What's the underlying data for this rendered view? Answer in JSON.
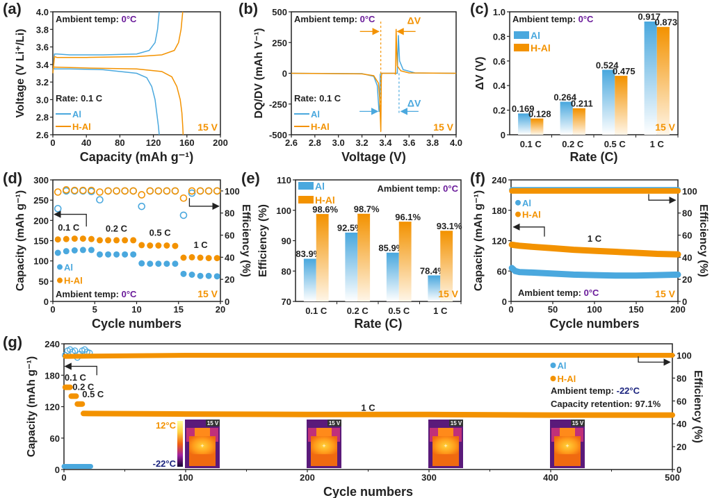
{
  "colors": {
    "al": "#4aa8de",
    "hal": "#f39200",
    "purple": "#6a1b9a",
    "navy": "#1a237e",
    "axis": "#222222"
  },
  "chart_data": [
    {
      "id": "a",
      "panel_label": "(a)",
      "type": "line",
      "xlabel": "Capacity (mAh g⁻¹)",
      "ylabel": "Voltage (V Li⁺/Li)",
      "xlim": [
        0,
        200
      ],
      "ylim": [
        2.6,
        4.0
      ],
      "xticks": [
        0,
        40,
        80,
        120,
        160,
        200
      ],
      "yticks": [
        2.6,
        2.8,
        3.0,
        3.2,
        3.4,
        3.6,
        3.8,
        4.0
      ],
      "annotations": {
        "ambient_prefix": "Ambient temp: ",
        "ambient_value": "0°C",
        "rate": "Rate: 0.1 C",
        "voltage": "15 V"
      },
      "legend": [
        "Al",
        "H-Al"
      ],
      "legend_position": "bottom-left",
      "series": [
        {
          "name": "Al charge",
          "legend": "Al",
          "x": [
            0,
            2,
            5,
            20,
            60,
            100,
            115,
            122,
            125,
            126,
            127
          ],
          "y": [
            3.3,
            3.52,
            3.52,
            3.51,
            3.51,
            3.52,
            3.56,
            3.65,
            3.8,
            3.9,
            4.0
          ]
        },
        {
          "name": "Al discharge",
          "legend": "Al",
          "x": [
            0,
            2,
            20,
            60,
            100,
            112,
            118,
            122,
            124,
            126,
            127
          ],
          "y": [
            3.36,
            3.35,
            3.35,
            3.34,
            3.3,
            3.25,
            3.15,
            3.0,
            2.85,
            2.7,
            2.6
          ]
        },
        {
          "name": "H-Al charge",
          "legend": "H-Al",
          "x": [
            0,
            2,
            5,
            40,
            100,
            130,
            145,
            150,
            153,
            154,
            155
          ],
          "y": [
            3.3,
            3.49,
            3.48,
            3.48,
            3.49,
            3.51,
            3.56,
            3.65,
            3.8,
            3.9,
            4.0
          ]
        },
        {
          "name": "H-Al discharge",
          "legend": "H-Al",
          "x": [
            0,
            2,
            40,
            100,
            130,
            142,
            148,
            152,
            154,
            155,
            155.5
          ],
          "y": [
            3.37,
            3.37,
            3.36,
            3.35,
            3.32,
            3.26,
            3.15,
            3.0,
            2.85,
            2.7,
            2.6
          ]
        }
      ]
    },
    {
      "id": "b",
      "panel_label": "(b)",
      "type": "line",
      "xlabel": "Voltage (V)",
      "ylabel": "DQ/DV (mAh V⁻¹)",
      "xlim": [
        2.6,
        4.0
      ],
      "ylim": [
        -500,
        500
      ],
      "xticks": [
        2.6,
        2.8,
        3.0,
        3.2,
        3.4,
        3.6,
        3.8,
        4.0
      ],
      "yticks": [
        -500,
        -250,
        0,
        250,
        500
      ],
      "annotations": {
        "ambient_prefix": "Ambient temp: ",
        "ambient_value": "0°C",
        "rate": "Rate: 0.1 C",
        "voltage": "15 V",
        "delta_v": "ΔV"
      },
      "legend": [
        "Al",
        "H-Al"
      ],
      "legend_position": "bottom-left",
      "series": [
        {
          "name": "Al",
          "x": [
            2.6,
            3.2,
            3.3,
            3.33,
            3.345,
            3.35,
            3.355,
            3.36,
            3.45,
            3.5,
            3.505,
            3.51,
            3.52,
            3.55,
            3.65,
            4.0
          ],
          "y": [
            0,
            -3,
            -25,
            -100,
            -310,
            -310,
            -10,
            0,
            0,
            0,
            150,
            310,
            100,
            30,
            3,
            0
          ]
        },
        {
          "name": "H-Al",
          "x": [
            2.6,
            3.2,
            3.3,
            3.34,
            3.35,
            3.36,
            3.365,
            3.37,
            3.48,
            3.485,
            3.49,
            3.495,
            3.5,
            3.53,
            3.6,
            4.0
          ],
          "y": [
            0,
            -5,
            -20,
            -80,
            -200,
            -470,
            -20,
            0,
            0,
            -10,
            360,
            200,
            60,
            20,
            3,
            0
          ]
        }
      ]
    },
    {
      "id": "c",
      "panel_label": "(c)",
      "type": "bar",
      "xlabel": "Rate (C)",
      "ylabel": "ΔV (V)",
      "categories": [
        "0.1 C",
        "0.2 C",
        "0.5 C",
        "1 C"
      ],
      "ylim": [
        0,
        1.0
      ],
      "yticks": [
        0,
        0.2,
        0.4,
        0.6,
        0.8,
        1.0
      ],
      "series": [
        {
          "name": "Al",
          "values": [
            0.169,
            0.264,
            0.524,
            0.917
          ],
          "labels": [
            "0.169",
            "0.264",
            "0.524",
            "0.917"
          ]
        },
        {
          "name": "H-Al",
          "values": [
            0.128,
            0.211,
            0.475,
            0.873
          ],
          "labels": [
            "0.128",
            "0.211",
            "0.475",
            "0.873"
          ]
        }
      ],
      "annotations": {
        "ambient_prefix": "Ambient temp: ",
        "ambient_value": "0°C",
        "voltage": "15 V"
      },
      "legend_position": "top-left"
    },
    {
      "id": "d",
      "panel_label": "(d)",
      "type": "scatter",
      "xlabel": "Cycle numbers",
      "ylabel": "Capacity (mAh g⁻¹)",
      "y2label": "Efficiency (%)",
      "xlim": [
        0,
        20
      ],
      "ylim": [
        0,
        300
      ],
      "y2lim": [
        0,
        110
      ],
      "xticks": [
        0,
        5,
        10,
        15,
        20
      ],
      "yticks": [
        0,
        50,
        100,
        150,
        200,
        250,
        300
      ],
      "y2ticks": [
        0,
        20,
        40,
        60,
        80,
        100
      ],
      "rate_labels": [
        "0.1 C",
        "0.2 C",
        "0.5 C",
        "1 C"
      ],
      "annotations": {
        "ambient_prefix": "Ambient temp: ",
        "ambient_value": "0°C",
        "voltage": "15 V"
      },
      "legend": [
        "Al",
        "H-Al"
      ],
      "legend_position": "bottom-left",
      "x": [
        0.6,
        1.6,
        2.6,
        3.6,
        4.6,
        5.6,
        6.6,
        7.6,
        8.6,
        9.6,
        10.6,
        11.6,
        12.6,
        13.6,
        14.6,
        15.6,
        16.6,
        17.6,
        18.6,
        19.6
      ],
      "series": [
        {
          "name": "Al capacity",
          "axis": "left",
          "values": [
            120,
            124,
            126,
            127,
            127,
            116,
            116,
            116,
            116,
            116,
            94,
            93,
            93,
            93,
            93,
            68,
            66,
            63,
            63,
            62
          ]
        },
        {
          "name": "H-Al capacity",
          "axis": "left",
          "values": [
            153,
            154,
            155,
            155,
            154,
            151,
            151,
            151,
            151,
            151,
            139,
            138,
            138,
            138,
            137,
            108,
            109,
            108,
            107,
            107
          ]
        },
        {
          "name": "Al efficiency",
          "axis": "right",
          "values": [
            84,
            100,
            100,
            100,
            99.5,
            92,
            100,
            100,
            100,
            100,
            86,
            100,
            100,
            100,
            100,
            78,
            98,
            100,
            100,
            100
          ]
        },
        {
          "name": "H-Al efficiency",
          "axis": "right",
          "values": [
            99,
            101,
            100.5,
            100.5,
            100.5,
            99,
            100,
            100,
            100,
            100,
            96.5,
            100,
            100,
            100,
            100,
            93.5,
            100,
            100,
            100,
            100
          ]
        }
      ]
    },
    {
      "id": "e",
      "panel_label": "(e)",
      "type": "bar",
      "xlabel": "Rate (C)",
      "ylabel": "Efficiency (%)",
      "categories": [
        "0.1 C",
        "0.2 C",
        "0.5 C",
        "1 C"
      ],
      "ylim": [
        70,
        110
      ],
      "yticks": [
        70,
        80,
        90,
        100,
        110
      ],
      "series": [
        {
          "name": "Al",
          "values": [
            83.9,
            92.5,
            85.9,
            78.4
          ],
          "labels": [
            "83.9%",
            "92.5%",
            "85.9%",
            "78.4%"
          ]
        },
        {
          "name": "H-Al",
          "values": [
            98.6,
            98.7,
            96.1,
            93.1
          ],
          "labels": [
            "98.6%",
            "98.7%",
            "96.1%",
            "93.1%"
          ]
        }
      ],
      "annotations": {
        "ambient_prefix": "Ambient temp: ",
        "ambient_value": "0°C",
        "voltage": "15 V"
      },
      "legend_position": "top-left"
    },
    {
      "id": "f",
      "panel_label": "(f)",
      "type": "scatter",
      "xlabel": "Cycle numbers",
      "ylabel": "Capacity (mAh g⁻¹)",
      "y2label": "Efficiency (%)",
      "xlim": [
        0,
        200
      ],
      "ylim": [
        0,
        240
      ],
      "y2lim": [
        0,
        110
      ],
      "xticks": [
        0,
        50,
        100,
        150,
        200
      ],
      "yticks": [
        0,
        60,
        120,
        180,
        240
      ],
      "y2ticks": [
        0,
        20,
        40,
        60,
        80,
        100
      ],
      "rate_label": "1 C",
      "annotations": {
        "ambient_prefix": "Ambient temp: ",
        "ambient_value": "0°C",
        "voltage": "15 V"
      },
      "legend": [
        "Al",
        "H-Al"
      ],
      "legend_position": "top-left",
      "x": [
        1,
        5,
        10,
        25,
        50,
        75,
        100,
        125,
        150,
        175,
        200
      ],
      "series": [
        {
          "name": "Al capacity",
          "axis": "left",
          "values": [
            66,
            60,
            58,
            57,
            55,
            53,
            52,
            51,
            51,
            52,
            53
          ]
        },
        {
          "name": "H-Al capacity",
          "axis": "left",
          "values": [
            112,
            111,
            110,
            108,
            105,
            102,
            100,
            98,
            96,
            94,
            93
          ]
        },
        {
          "name": "Al efficiency",
          "axis": "right",
          "values": [
            101,
            101,
            101,
            101,
            101,
            101,
            101,
            101,
            101,
            101,
            101
          ]
        },
        {
          "name": "H-Al efficiency",
          "axis": "right",
          "values": [
            100,
            100,
            100,
            100,
            100,
            100,
            100,
            100,
            100,
            100,
            100
          ]
        }
      ]
    },
    {
      "id": "g",
      "panel_label": "(g)",
      "type": "scatter",
      "xlabel": "Cycle numbers",
      "ylabel": "Capacity (mAh g⁻¹)",
      "y2label": "Efficiency (%)",
      "xlim": [
        0,
        500
      ],
      "ylim": [
        0,
        240
      ],
      "y2lim": [
        0,
        110
      ],
      "xticks": [
        0,
        100,
        200,
        300,
        400,
        500
      ],
      "yticks": [
        0,
        60,
        120,
        180,
        240
      ],
      "y2ticks": [
        0,
        20,
        40,
        60,
        80,
        100
      ],
      "rate_labels": [
        "0.1 C",
        "0.2 C",
        "0.5 C",
        "1 C"
      ],
      "annotations": {
        "ambient_prefix": "Ambient temp: ",
        "ambient_value": "-22°C",
        "retention": "Capacity retention: 97.1%"
      },
      "legend": [
        "Al",
        "H-Al"
      ],
      "legend_position": "right",
      "series": [
        {
          "name": "Al capacity",
          "axis": "left",
          "x": [
            0,
            22
          ],
          "values": [
            6,
            6
          ]
        },
        {
          "name": "H-Al capacity",
          "axis": "left",
          "x": [
            1,
            5,
            6,
            10,
            11,
            15,
            16,
            100,
            200,
            300,
            400,
            500
          ],
          "values": [
            157,
            157,
            140,
            140,
            125,
            125,
            107,
            106,
            105,
            105,
            104,
            104
          ]
        },
        {
          "name": "Al efficiency",
          "axis": "right",
          "x": [
            1,
            3,
            5,
            7,
            9,
            11,
            13,
            15,
            17,
            19,
            21
          ],
          "values": [
            100,
            104,
            105,
            103,
            104,
            98,
            101,
            104,
            105,
            103,
            102
          ]
        },
        {
          "name": "H-Al efficiency",
          "axis": "right",
          "x": [
            1,
            100,
            200,
            300,
            400,
            500
          ],
          "values": [
            99,
            100,
            100,
            100,
            100,
            100
          ]
        }
      ],
      "colorbar": {
        "max_label": "12°C",
        "min_label": "-22°C"
      },
      "thermal_images": [
        {
          "label": "15 V",
          "cycle": 0
        },
        {
          "label": "15 V",
          "cycle": 200
        },
        {
          "label": "15 V",
          "cycle": 300
        },
        {
          "label": "15 V",
          "cycle": 400
        }
      ]
    }
  ]
}
